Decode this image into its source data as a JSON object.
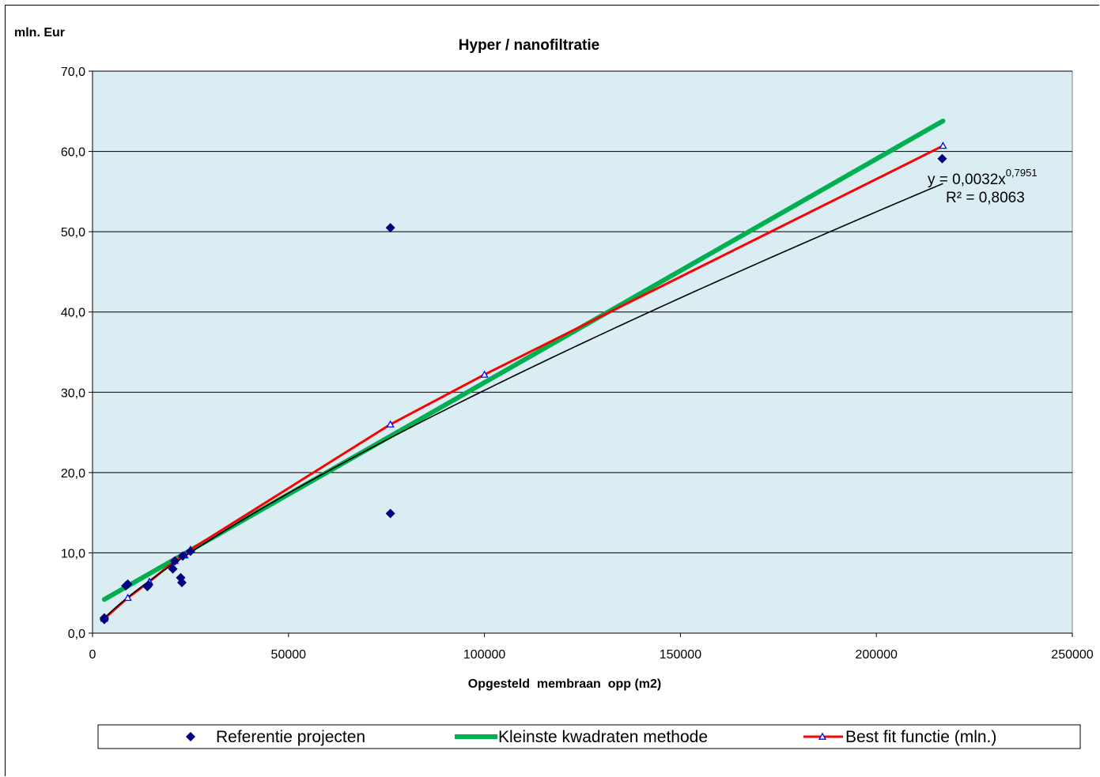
{
  "chart_data": {
    "type": "scatter",
    "title": "Hyper / nanofiltratie",
    "ylabel": "mln. Eur",
    "xlabel": "Opgesteld  membraan  opp (m2)",
    "xlim": [
      0,
      250000
    ],
    "ylim": [
      0,
      70
    ],
    "x_ticks": [
      "0",
      "50000",
      "100000",
      "150000",
      "200000",
      "250000"
    ],
    "y_ticks": [
      "0,0",
      "10,0",
      "20,0",
      "30,0",
      "40,0",
      "50,0",
      "60,0",
      "70,0"
    ],
    "grid": "horizontal",
    "legend_placement": "bottom",
    "trendline": {
      "equation_base": "y = 0,0032x",
      "equation_exponent": "0,7951",
      "r_squared": "R² = 0,8063",
      "coefficient": 0.0032,
      "exponent": 0.7951,
      "x_range": [
        3000,
        217000
      ]
    },
    "series": [
      {
        "name": "Referentie projecten",
        "kind": "scatter",
        "color": "#000080",
        "marker": "diamond",
        "points": [
          [
            3000,
            1.9
          ],
          [
            3000,
            1.7
          ],
          [
            8500,
            5.9
          ],
          [
            9000,
            6.1
          ],
          [
            14000,
            5.8
          ],
          [
            14300,
            6.0
          ],
          [
            20500,
            8.0
          ],
          [
            21000,
            9.0
          ],
          [
            22500,
            6.9
          ],
          [
            22800,
            6.3
          ],
          [
            23000,
            9.6
          ],
          [
            25000,
            10.2
          ],
          [
            76000,
            50.5
          ],
          [
            76000,
            14.9
          ],
          [
            216800,
            59.1
          ]
        ]
      },
      {
        "name": "Kleinste kwadraten methode",
        "kind": "line",
        "color": "#00b050",
        "points": [
          [
            3000,
            4.2
          ],
          [
            217000,
            63.8
          ]
        ]
      },
      {
        "name": "Best fit functie (mln.)",
        "kind": "line-markers",
        "color": "#ff0000",
        "marker_color": "#0000ff",
        "marker": "triangle",
        "points": [
          [
            3000,
            1.8
          ],
          [
            9000,
            4.4
          ],
          [
            14500,
            6.4
          ],
          [
            21000,
            9.0
          ],
          [
            23500,
            9.7
          ],
          [
            25000,
            10.4
          ],
          [
            76000,
            26.0
          ],
          [
            100000,
            32.2
          ],
          [
            217000,
            60.7
          ]
        ]
      }
    ]
  }
}
